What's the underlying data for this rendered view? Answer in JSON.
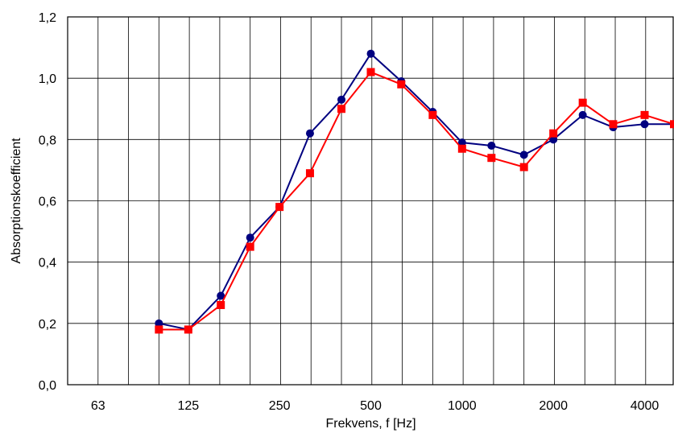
{
  "chart_data": {
    "type": "line",
    "xlabel": "Frekvens, f [Hz]",
    "ylabel": "Absorptionskoefficient",
    "x_scale": "log",
    "xlim": [
      50,
      5000
    ],
    "ylim": [
      0,
      1.2
    ],
    "grid": true,
    "x_ticks": [
      {
        "value": 63,
        "label": "63"
      },
      {
        "value": 125,
        "label": "125"
      },
      {
        "value": 250,
        "label": "250"
      },
      {
        "value": 500,
        "label": "500"
      },
      {
        "value": 1000,
        "label": "1000"
      },
      {
        "value": 2000,
        "label": "2000"
      },
      {
        "value": 4000,
        "label": "4000"
      }
    ],
    "y_ticks": [
      {
        "value": 0,
        "label": "0,0"
      },
      {
        "value": 0.2,
        "label": "0,2"
      },
      {
        "value": 0.4,
        "label": "0,4"
      },
      {
        "value": 0.6,
        "label": "0,6"
      },
      {
        "value": 0.8,
        "label": "0,8"
      },
      {
        "value": 1.0,
        "label": "1,0"
      },
      {
        "value": 1.2,
        "label": "1,2"
      }
    ],
    "x": [
      100,
      125,
      160,
      200,
      250,
      315,
      400,
      500,
      630,
      800,
      1000,
      1250,
      1600,
      2000,
      2500,
      3150,
      4000,
      5000
    ],
    "series": [
      {
        "color": "#000080",
        "marker": "circle",
        "values": [
          0.2,
          0.18,
          0.29,
          0.48,
          0.58,
          0.82,
          0.93,
          1.08,
          0.99,
          0.89,
          0.79,
          0.78,
          0.75,
          0.8,
          0.88,
          0.84,
          0.85,
          0.85
        ]
      },
      {
        "color": "#ff0000",
        "marker": "square",
        "values": [
          0.18,
          0.18,
          0.26,
          0.45,
          0.58,
          0.69,
          0.9,
          1.02,
          0.98,
          0.88,
          0.77,
          0.74,
          0.71,
          0.82,
          0.92,
          0.85,
          0.88,
          0.85
        ]
      }
    ]
  }
}
